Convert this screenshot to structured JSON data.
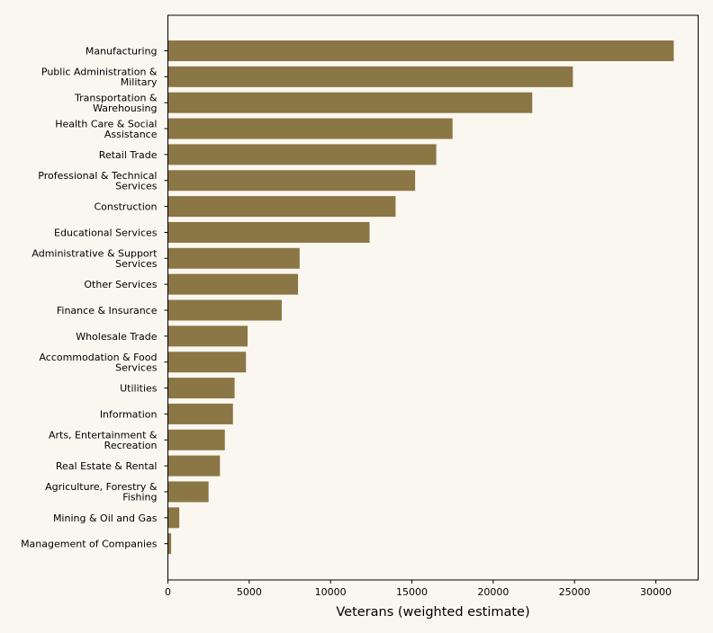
{
  "chart_data": {
    "type": "bar",
    "orientation": "horizontal",
    "title": "",
    "xlabel": "Veterans (weighted estimate)",
    "ylabel": "",
    "xlim": [
      0,
      32600
    ],
    "xticks": [
      0,
      5000,
      10000,
      15000,
      20000,
      25000,
      30000
    ],
    "grid": false,
    "bar_color": "#8b7645",
    "background": "#faf7f0",
    "categories": [
      [
        "Manufacturing"
      ],
      [
        "Public Administration &",
        "Military"
      ],
      [
        "Transportation &",
        "Warehousing"
      ],
      [
        "Health Care & Social",
        "Assistance"
      ],
      [
        "Retail Trade"
      ],
      [
        "Professional & Technical",
        "Services"
      ],
      [
        "Construction"
      ],
      [
        "Educational Services"
      ],
      [
        "Administrative & Support",
        "Services"
      ],
      [
        "Other Services"
      ],
      [
        "Finance & Insurance"
      ],
      [
        "Wholesale Trade"
      ],
      [
        "Accommodation & Food",
        "Services"
      ],
      [
        "Utilities"
      ],
      [
        "Information"
      ],
      [
        "Arts, Entertainment &",
        "Recreation"
      ],
      [
        "Real Estate & Rental"
      ],
      [
        "Agriculture, Forestry &",
        "Fishing"
      ],
      [
        "Mining & Oil and Gas"
      ],
      [
        "Management of Companies"
      ]
    ],
    "values": [
      31100,
      24900,
      22400,
      17500,
      16500,
      15200,
      14000,
      12400,
      8100,
      8000,
      7000,
      4900,
      4800,
      4100,
      4000,
      3500,
      3200,
      2500,
      700,
      200
    ]
  }
}
